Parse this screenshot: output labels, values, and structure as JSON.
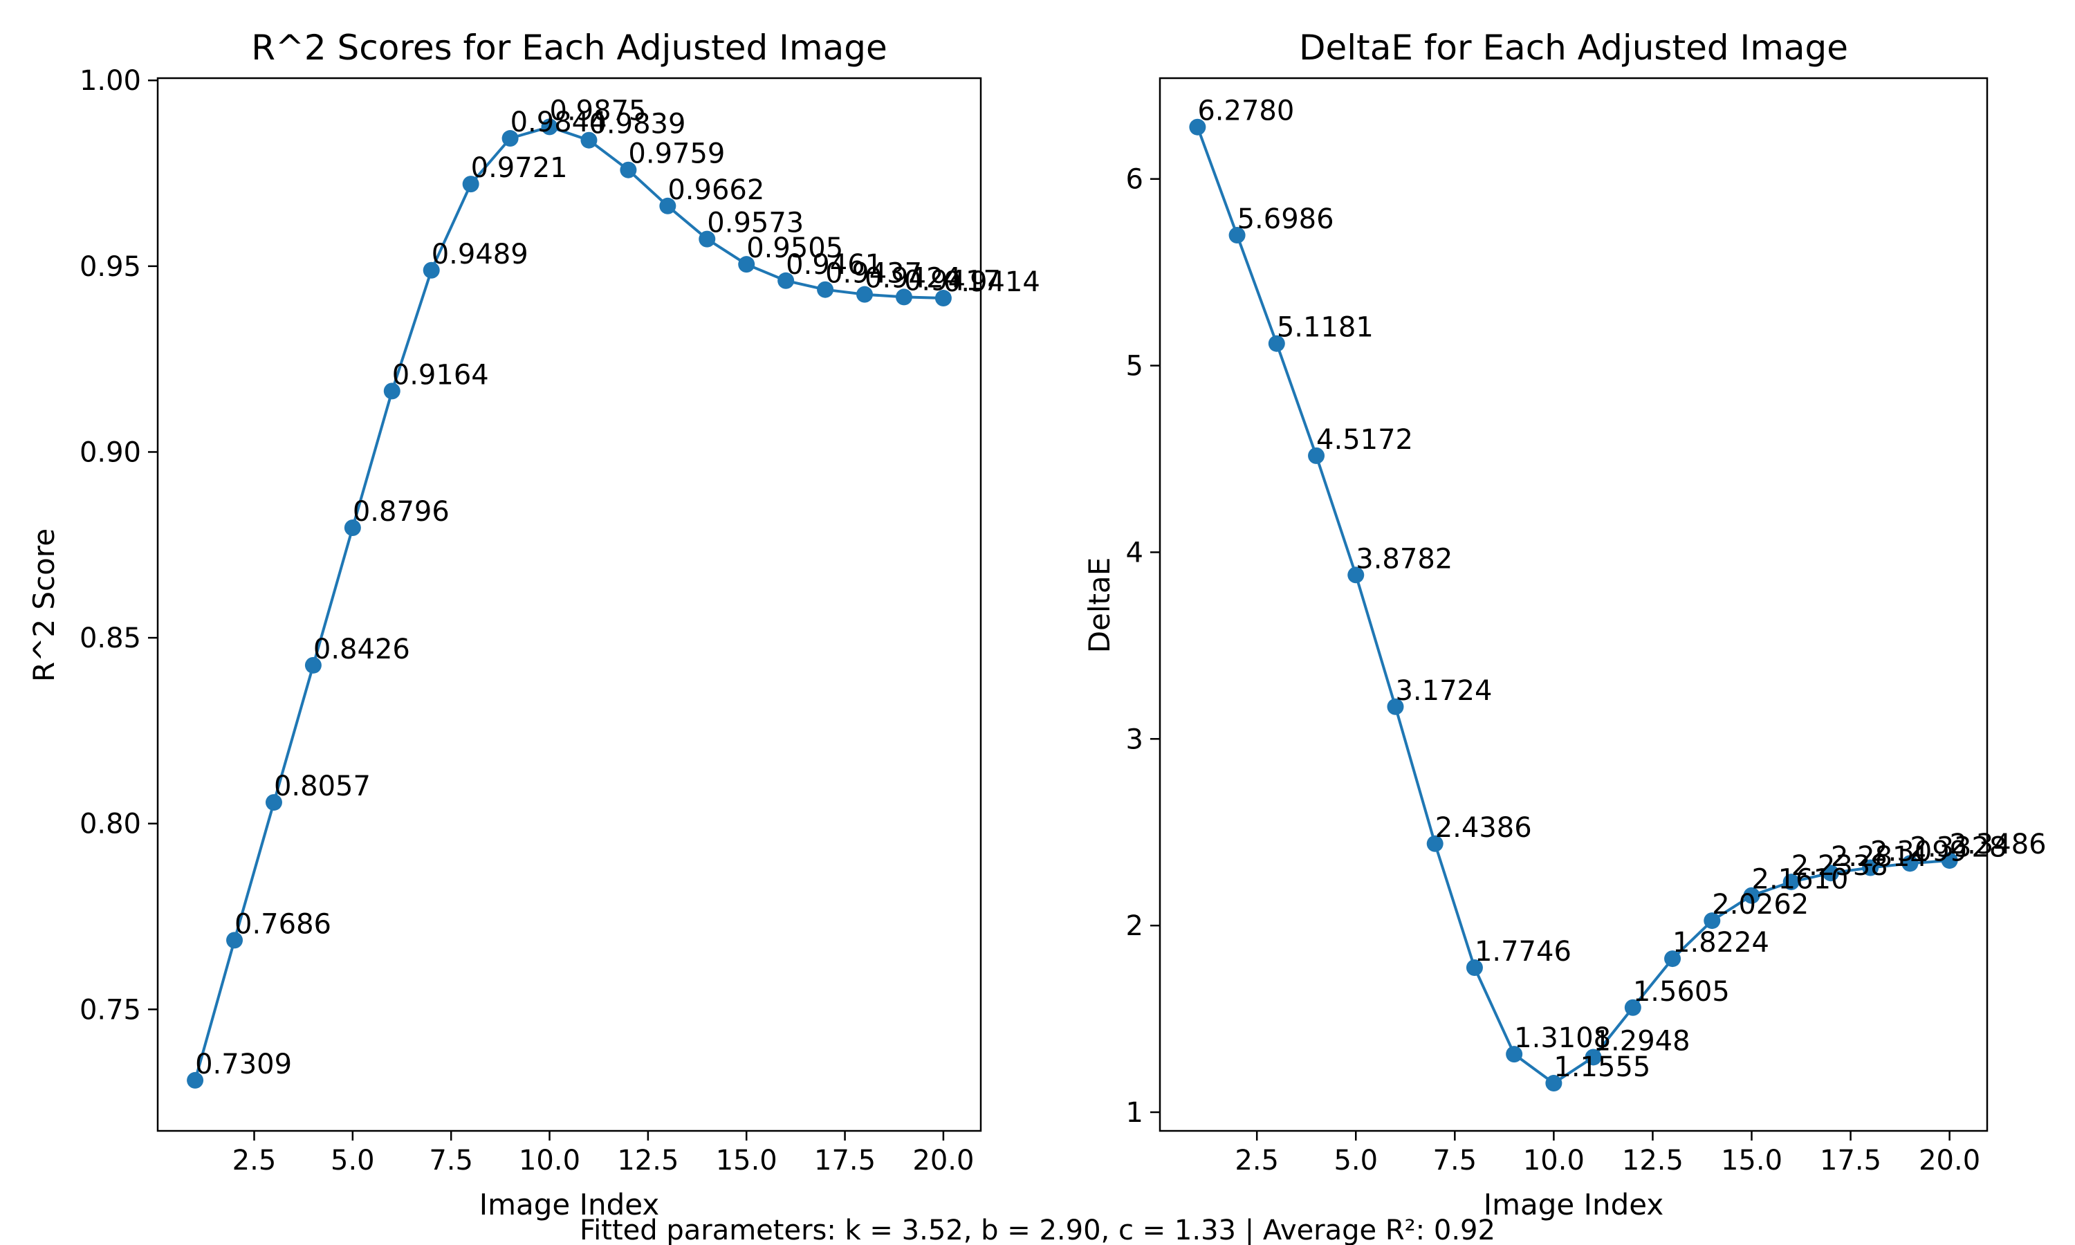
{
  "footer_text": "Fitted parameters: k = 3.52, b = 2.90, c = 1.33 | Average R²: 0.92",
  "colors": {
    "series": "#1f77b4",
    "axis": "#000000",
    "background": "#ffffff"
  },
  "chart_data": [
    {
      "type": "line",
      "markers": "circle",
      "title": "R^2 Scores for Each Adjusted Image",
      "xlabel": "Image Index",
      "ylabel": "R^2 Score",
      "xlim": [
        0.05,
        20.95
      ],
      "ylim": [
        0.7173,
        1.0006
      ],
      "xticks": [
        2.5,
        5.0,
        7.5,
        10.0,
        12.5,
        15.0,
        17.5,
        20.0
      ],
      "xtick_labels": [
        "2.5",
        "5.0",
        "7.5",
        "10.0",
        "12.5",
        "15.0",
        "17.5",
        "20.0"
      ],
      "yticks": [
        0.75,
        0.8,
        0.85,
        0.9,
        0.95,
        1.0
      ],
      "ytick_labels": [
        "0.75",
        "0.80",
        "0.85",
        "0.90",
        "0.95",
        "1.00"
      ],
      "grid": false,
      "series": [
        {
          "x": [
            1,
            2,
            3,
            4,
            5,
            6,
            7,
            8,
            9,
            10,
            11,
            12,
            13,
            14,
            15,
            16,
            17,
            18,
            19,
            20
          ],
          "values": [
            0.7309,
            0.7686,
            0.8057,
            0.8426,
            0.8796,
            0.9164,
            0.9489,
            0.9721,
            0.9844,
            0.9875,
            0.9839,
            0.9759,
            0.9662,
            0.9573,
            0.9505,
            0.9461,
            0.9437,
            0.9424,
            0.9417,
            0.9414
          ],
          "labels": [
            "0.7309",
            "0.7686",
            "0.8057",
            "0.8426",
            "0.8796",
            "0.9164",
            "0.9489",
            "0.9721",
            "0.9844",
            "0.9875",
            "0.9839",
            "0.9759",
            "0.9662",
            "0.9573",
            "0.9505",
            "0.9461",
            "0.9437",
            "0.9424",
            "0.9417",
            "0.9414"
          ]
        }
      ]
    },
    {
      "type": "line",
      "markers": "circle",
      "title": "DeltaE for Each Adjusted Image",
      "xlabel": "Image Index",
      "ylabel": "DeltaE",
      "xlim": [
        0.05,
        20.95
      ],
      "ylim": [
        0.9,
        6.54
      ],
      "xticks": [
        2.5,
        5.0,
        7.5,
        10.0,
        12.5,
        15.0,
        17.5,
        20.0
      ],
      "xtick_labels": [
        "2.5",
        "5.0",
        "7.5",
        "10.0",
        "12.5",
        "15.0",
        "17.5",
        "20.0"
      ],
      "yticks": [
        1,
        2,
        3,
        4,
        5,
        6
      ],
      "ytick_labels": [
        "1",
        "2",
        "3",
        "4",
        "5",
        "6"
      ],
      "grid": false,
      "series": [
        {
          "x": [
            1,
            2,
            3,
            4,
            5,
            6,
            7,
            8,
            9,
            10,
            11,
            12,
            13,
            14,
            15,
            16,
            17,
            18,
            19,
            20
          ],
          "values": [
            6.278,
            5.6986,
            5.1181,
            4.5172,
            3.8782,
            3.1724,
            2.4386,
            1.7746,
            1.3108,
            1.1555,
            1.2948,
            1.5605,
            1.8224,
            2.0262,
            2.161,
            2.2338,
            2.2814,
            2.3099,
            2.3328,
            2.3486
          ],
          "labels": [
            "6.2780",
            "5.6986",
            "5.1181",
            "4.5172",
            "3.8782",
            "3.1724",
            "2.4386",
            "1.7746",
            "1.3108",
            "1.1555",
            "1.2948",
            "1.5605",
            "1.8224",
            "2.0262",
            "2.1610",
            "2.2338",
            "2.2814",
            "2.3099",
            "2.3328",
            "2.3486"
          ]
        }
      ]
    }
  ]
}
